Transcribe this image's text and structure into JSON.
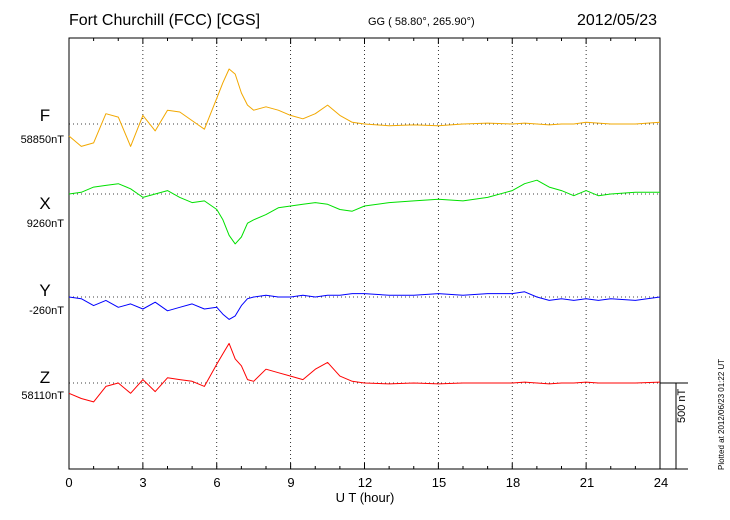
{
  "header": {
    "station": "Fort Churchill (FCC)  [CGS]",
    "coordinates": "GG ( 58.80°, 265.90°)",
    "date": "2012/05/23"
  },
  "footer": {
    "scale_label": "500 nT",
    "plotted_note": "Plotted at 2012/06/23 01:22 UT"
  },
  "chart_data": {
    "type": "line",
    "xlabel": "U T (hour)",
    "xlim": [
      0,
      24
    ],
    "xticks": [
      "0",
      "3",
      "6",
      "9",
      "12",
      "15",
      "18",
      "21",
      "24"
    ],
    "grid": true,
    "scale_bar_nT": 500,
    "x": [
      0,
      0.5,
      1,
      1.5,
      2,
      2.5,
      3,
      3.5,
      4,
      4.5,
      5,
      5.5,
      6,
      6.25,
      6.5,
      6.75,
      7,
      7.25,
      7.5,
      8,
      8.5,
      9,
      9.5,
      10,
      10.5,
      11,
      11.5,
      12,
      13,
      14,
      15,
      16,
      17,
      18,
      18.5,
      19,
      19.5,
      20,
      20.5,
      21,
      21.5,
      22,
      23,
      24
    ],
    "series": [
      {
        "name": "F",
        "baseline": "58850nT",
        "color": "#f2a800",
        "values": [
          -70,
          -130,
          -110,
          60,
          40,
          -130,
          50,
          -40,
          80,
          70,
          20,
          -30,
          150,
          240,
          320,
          290,
          180,
          110,
          80,
          100,
          80,
          50,
          30,
          60,
          110,
          50,
          10,
          0,
          -10,
          -5,
          -10,
          0,
          5,
          0,
          5,
          0,
          -5,
          0,
          0,
          10,
          5,
          0,
          0,
          10
        ]
      },
      {
        "name": "X",
        "baseline": "9260nT",
        "color": "#00e000",
        "values": [
          0,
          10,
          40,
          50,
          60,
          30,
          -20,
          0,
          20,
          -20,
          -50,
          -40,
          -90,
          -150,
          -240,
          -290,
          -250,
          -170,
          -150,
          -120,
          -80,
          -70,
          -60,
          -50,
          -60,
          -90,
          -100,
          -70,
          -50,
          -40,
          -30,
          -40,
          -20,
          20,
          60,
          80,
          40,
          20,
          -10,
          20,
          -10,
          0,
          10,
          10
        ]
      },
      {
        "name": "Y",
        "baseline": "-260nT",
        "color": "#0000ff",
        "values": [
          0,
          -10,
          -50,
          -20,
          -60,
          -40,
          -70,
          -30,
          -80,
          -60,
          -40,
          -70,
          -60,
          -100,
          -130,
          -110,
          -50,
          -10,
          0,
          10,
          0,
          0,
          10,
          0,
          10,
          10,
          20,
          20,
          10,
          10,
          20,
          10,
          20,
          20,
          30,
          0,
          -20,
          -10,
          -20,
          -10,
          -20,
          -10,
          -20,
          0
        ]
      },
      {
        "name": "Z",
        "baseline": "58110nT",
        "color": "#ff0000",
        "values": [
          -60,
          -90,
          -110,
          -20,
          0,
          -60,
          20,
          -50,
          30,
          20,
          10,
          -20,
          110,
          170,
          230,
          140,
          100,
          20,
          10,
          80,
          60,
          40,
          20,
          80,
          120,
          40,
          10,
          0,
          -5,
          0,
          -5,
          0,
          0,
          0,
          5,
          0,
          -5,
          0,
          0,
          5,
          0,
          0,
          0,
          5
        ]
      }
    ]
  }
}
